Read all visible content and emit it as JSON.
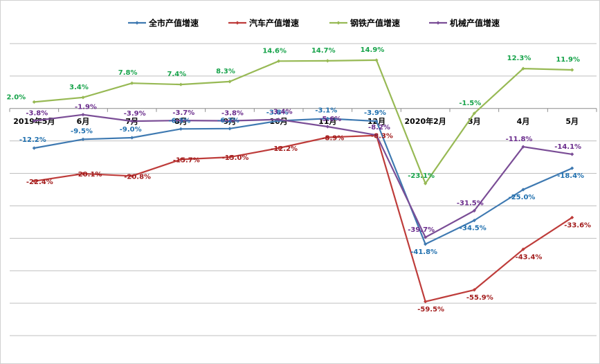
{
  "chart_data": {
    "type": "line",
    "title": "",
    "xlabel": "",
    "ylabel": "",
    "categories": [
      "2019年5月",
      "6月",
      "7月",
      "8月",
      "9月",
      "10月",
      "11月",
      "12月",
      "2020年2月",
      "3月",
      "4月",
      "5月"
    ],
    "ylim": [
      -70,
      20
    ],
    "grid": true,
    "legend_position": "top",
    "series": [
      {
        "name": "全市产值增速",
        "color": "#3e79b1",
        "values": [
          -12.2,
          -9.5,
          -9.0,
          -6.3,
          -6.2,
          -3.8,
          -3.1,
          -3.9,
          -41.8,
          -34.5,
          -25.0,
          -18.4
        ],
        "labels": [
          "-12.2%",
          "-9.5%",
          "-9.0%",
          "-6.3%",
          "-6.2%",
          "-3.8%",
          "-3.1%",
          "-3.9%",
          "-41.8%",
          "-34.5%",
          "-25.0%",
          "-18.4%"
        ]
      },
      {
        "name": "汽车产值增速",
        "color": "#be3c3a",
        "values": [
          -22.4,
          -20.1,
          -20.8,
          -15.7,
          -15.0,
          -12.2,
          -8.9,
          -8.3,
          -59.5,
          -55.9,
          -43.4,
          -33.6
        ],
        "labels": [
          "-22.4%",
          "-20.1%",
          "-20.8%",
          "-15.7%",
          "-15.0%",
          "-12.2%",
          "-8.9%",
          "-8.3%",
          "-59.5%",
          "-55.9%",
          "-43.4%",
          "-33.6%"
        ]
      },
      {
        "name": "钢铁产值增速",
        "color": "#97b954",
        "values": [
          2.0,
          3.4,
          7.8,
          7.4,
          8.3,
          14.6,
          14.7,
          14.9,
          -23.1,
          -1.5,
          12.3,
          11.9
        ],
        "labels": [
          "2.0%",
          "3.4%",
          "7.8%",
          "7.4%",
          "8.3%",
          "14.6%",
          "14.7%",
          "14.9%",
          "-23.1%",
          "-1.5%",
          "12.3%",
          "11.9%"
        ]
      },
      {
        "name": "机械产值增速",
        "color": "#7a4d96",
        "values": [
          -3.8,
          -1.9,
          -3.9,
          -3.7,
          -3.8,
          -3.4,
          -5.6,
          -8.2,
          -39.7,
          -31.5,
          -11.8,
          -14.1
        ],
        "labels": [
          "-3.8%",
          "-1.9%",
          "-3.9%",
          "-3.7%",
          "-3.8%",
          "-3.4%",
          "-5.6%",
          "-8.2%",
          "-39.7%",
          "-31.5%",
          "-11.8%",
          "-14.1%"
        ]
      }
    ]
  },
  "label_colors": {
    "全市产值增速": "#1f6fae",
    "汽车产值增速": "#a21c1c",
    "钢铁产值增速": "#17a34a",
    "机械产值增速": "#6a2c8c"
  }
}
